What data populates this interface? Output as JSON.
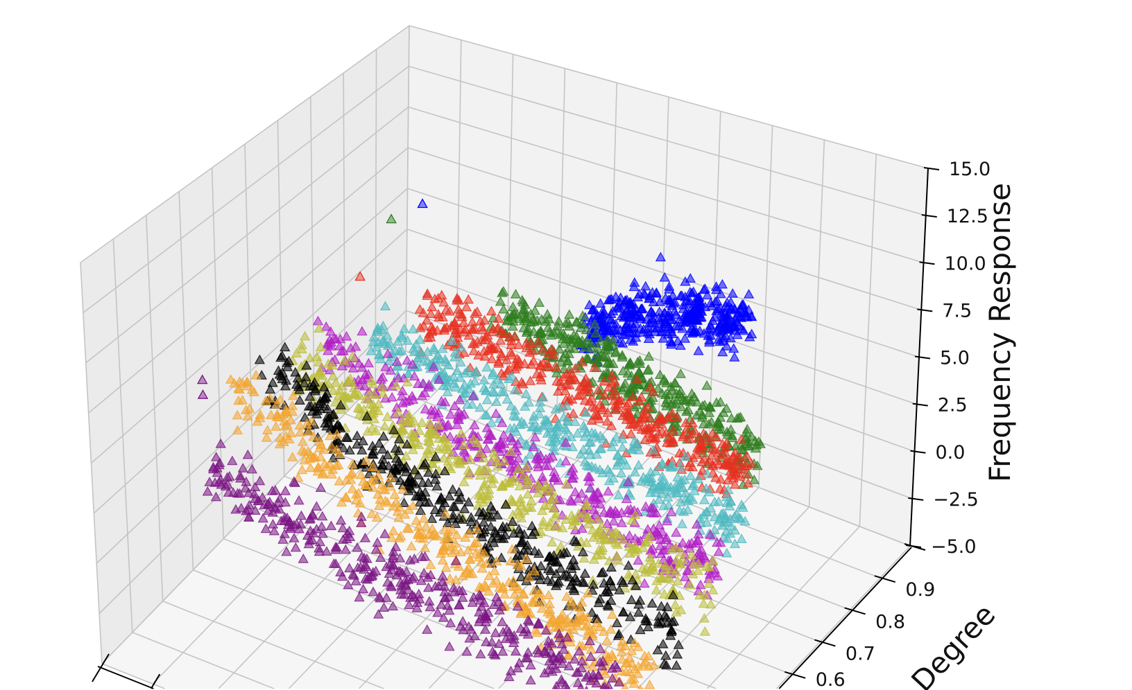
{
  "chart_data": {
    "type": "scatter3d",
    "title": "",
    "xlabel": "",
    "ylabel": "Degree",
    "zlabel": "Frequency Response",
    "xlim": [
      0,
      100
    ],
    "ylim": [
      0.0,
      1.0
    ],
    "zlim": [
      -5.0,
      15.0
    ],
    "zticks": [
      "15.0",
      "12.5",
      "10.0",
      "7.5",
      "5.0",
      "2.5",
      "0.0",
      "−2.5",
      "−5.0"
    ],
    "zticks_values": [
      15.0,
      12.5,
      10.0,
      7.5,
      5.0,
      2.5,
      0.0,
      -2.5,
      -5.0
    ],
    "yticks": [
      "0.9",
      "0.8",
      "0.7",
      "0.6"
    ],
    "yticks_values": [
      0.9,
      0.8,
      0.7,
      0.6
    ],
    "grid": true,
    "marker": "triangle",
    "series": [
      {
        "color": "#0000ff",
        "degree": 0.95,
        "x": [
          38,
          48,
          58,
          70
        ],
        "z": [
          1.5,
          3.0,
          4.3,
          5.0
        ],
        "outliers": [
          [
            6,
            5.5
          ]
        ]
      },
      {
        "color": "#2e7d1e",
        "degree": 0.9,
        "x": [
          24,
          40,
          58,
          75
        ],
        "z": [
          1.9,
          1.0,
          0.1,
          -0.9
        ],
        "outliers": [
          [
            3,
            5.1
          ]
        ]
      },
      {
        "color": "#e8301f",
        "degree": 0.85,
        "x": [
          12,
          30,
          55,
          76
        ],
        "z": [
          1.6,
          0.8,
          -0.2,
          -1.0
        ],
        "outliers": [
          [
            0,
            2.2
          ]
        ]
      },
      {
        "color": "#4fb9c1",
        "degree": 0.8,
        "x": [
          5,
          25,
          50,
          78
        ],
        "z": [
          0.4,
          -0.8,
          -1.8,
          -2.8
        ],
        "outliers": []
      },
      {
        "color": "#b01fc4",
        "degree": 0.72,
        "x": [
          0,
          20,
          50,
          79
        ],
        "z": [
          0.5,
          -1.0,
          -2.6,
          -3.7
        ],
        "outliers": []
      },
      {
        "color": "#bcbd38",
        "degree": 0.64,
        "x": [
          0,
          20,
          50,
          82
        ],
        "z": [
          0.9,
          -0.8,
          -2.4,
          -3.5
        ],
        "outliers": []
      },
      {
        "color": "#000000",
        "degree": 0.55,
        "x": [
          0,
          20,
          50,
          81
        ],
        "z": [
          1.8,
          -0.6,
          -2.8,
          -4.5
        ],
        "outliers": []
      },
      {
        "color": "#f2a531",
        "degree": 0.45,
        "x": [
          0,
          20,
          50,
          81
        ],
        "z": [
          2.8,
          -0.2,
          -2.6,
          -4.5
        ],
        "outliers": []
      },
      {
        "color": "#7a1583",
        "degree": 0.35,
        "x": [
          0,
          20,
          50,
          80
        ],
        "z": [
          -0.5,
          -1.6,
          -2.8,
          -3.6
        ],
        "outliers": [
          [
            0,
            4.3
          ],
          [
            0,
            3.5
          ]
        ]
      }
    ]
  }
}
